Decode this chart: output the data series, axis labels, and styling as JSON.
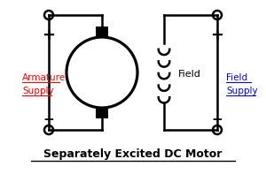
{
  "title": "Separately Excited DC Motor",
  "armature_label": "Armature",
  "field_label": "Field",
  "armature_supply_color": "#ff0000",
  "field_supply_color": "#0000ff",
  "line_color": "#000000",
  "bg_color": "#ffffff",
  "figw": 3.0,
  "figh": 2.07,
  "dpi": 100
}
